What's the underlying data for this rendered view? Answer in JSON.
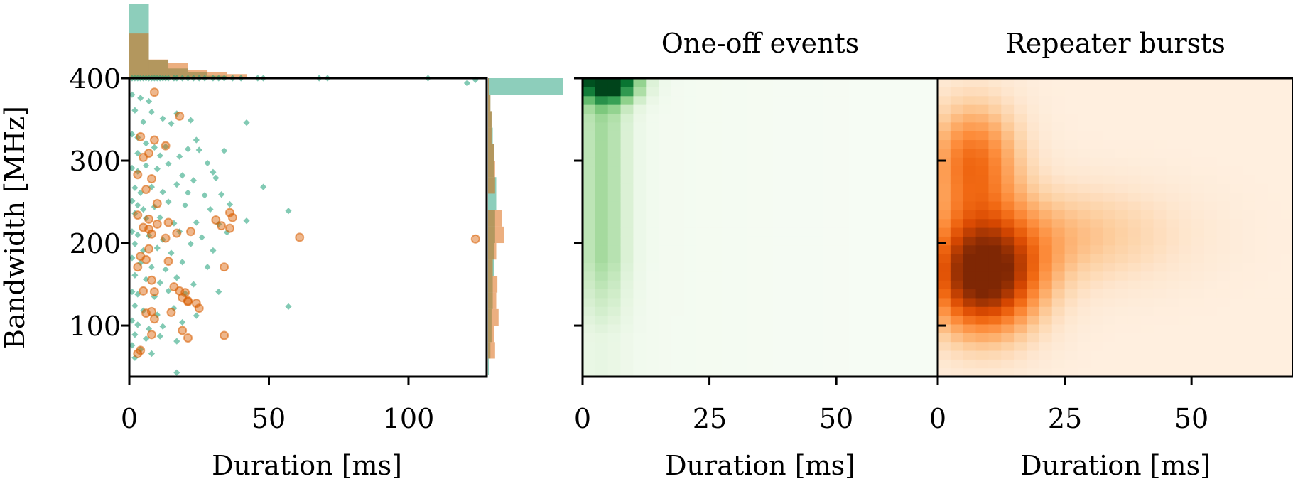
{
  "chart_data": [
    {
      "type": "scatter",
      "title": "",
      "xlabel": "Duration [ms]",
      "ylabel": "Bandwidth [MHz]",
      "xlim": [
        0,
        128
      ],
      "ylim": [
        38,
        400
      ],
      "xticks": [
        "0",
        "50",
        "100"
      ],
      "yticks": [
        "100",
        "200",
        "300",
        "400"
      ],
      "series": [
        {
          "color": "#1b9e77",
          "marker": "diamond",
          "points": [
            [
              1,
              400
            ],
            [
              2,
              400
            ],
            [
              3,
              400
            ],
            [
              4,
              400
            ],
            [
              5,
              400
            ],
            [
              6,
              400
            ],
            [
              7,
              400
            ],
            [
              8,
              400
            ],
            [
              9,
              400
            ],
            [
              10,
              400
            ],
            [
              11,
              400
            ],
            [
              12,
              400
            ],
            [
              13,
              400
            ],
            [
              14,
              400
            ],
            [
              16,
              400
            ],
            [
              17,
              400
            ],
            [
              19,
              400
            ],
            [
              21,
              400
            ],
            [
              23,
              400
            ],
            [
              25,
              400
            ],
            [
              27,
              400
            ],
            [
              30,
              400
            ],
            [
              32,
              400
            ],
            [
              34,
              400
            ],
            [
              37,
              400
            ],
            [
              40,
              400
            ],
            [
              46,
              400
            ],
            [
              48,
              400
            ],
            [
              68,
              400
            ],
            [
              71,
              400
            ],
            [
              107,
              400
            ],
            [
              121,
              394
            ],
            [
              124,
              398
            ],
            [
              1,
              380
            ],
            [
              4,
              376
            ],
            [
              7,
              372
            ],
            [
              2,
              361
            ],
            [
              8,
              359
            ],
            [
              5,
              347
            ],
            [
              12,
              351
            ],
            [
              15,
              345
            ],
            [
              22,
              349
            ],
            [
              17,
              357
            ],
            [
              42,
              346
            ],
            [
              1,
              332
            ],
            [
              3,
              328
            ],
            [
              6,
              321
            ],
            [
              9,
              316
            ],
            [
              13,
              317
            ],
            [
              3,
              309
            ],
            [
              11,
              306
            ],
            [
              18,
              305
            ],
            [
              24,
              325
            ],
            [
              21,
              314
            ],
            [
              25,
              313
            ],
            [
              34,
              312
            ],
            [
              28,
              297
            ],
            [
              1,
              291
            ],
            [
              3,
              287
            ],
            [
              6,
              294
            ],
            [
              10,
              290
            ],
            [
              14,
              296
            ],
            [
              19,
              282
            ],
            [
              23,
              276
            ],
            [
              31,
              279
            ],
            [
              30,
              286
            ],
            [
              2,
              267
            ],
            [
              4,
              261
            ],
            [
              8,
              268
            ],
            [
              12,
              262
            ],
            [
              17,
              271
            ],
            [
              21,
              261
            ],
            [
              27,
              258
            ],
            [
              33,
              259
            ],
            [
              48,
              268
            ],
            [
              1,
              251
            ],
            [
              3,
              246
            ],
            [
              5,
              241
            ],
            [
              9,
              244
            ],
            [
              14,
              250
            ],
            [
              20,
              246
            ],
            [
              29,
              241
            ],
            [
              36,
              247
            ],
            [
              57,
              239
            ],
            [
              2,
              236
            ],
            [
              6,
              230
            ],
            [
              11,
              231
            ],
            [
              16,
              224
            ],
            [
              24,
              225
            ],
            [
              32,
              223
            ],
            [
              42,
              227
            ],
            [
              1,
              214
            ],
            [
              3,
              210
            ],
            [
              7,
              209
            ],
            [
              12,
              204
            ],
            [
              18,
              214
            ],
            [
              26,
              207
            ],
            [
              35,
              213
            ],
            [
              2,
              199
            ],
            [
              5,
              191
            ],
            [
              10,
              194
            ],
            [
              15,
              188
            ],
            [
              22,
              199
            ],
            [
              30,
              191
            ],
            [
              1,
              182
            ],
            [
              4,
              176
            ],
            [
              8,
              171
            ],
            [
              13,
              168
            ],
            [
              19,
              177
            ],
            [
              28,
              171
            ],
            [
              2,
              161
            ],
            [
              6,
              156
            ],
            [
              11,
              152
            ],
            [
              17,
              158
            ],
            [
              23,
              150
            ],
            [
              1,
              141
            ],
            [
              3,
              138
            ],
            [
              9,
              135
            ],
            [
              14,
              142
            ],
            [
              20,
              139
            ],
            [
              32,
              141
            ],
            [
              2,
              124
            ],
            [
              5,
              118
            ],
            [
              10,
              113
            ],
            [
              16,
              121
            ],
            [
              24,
              112
            ],
            [
              57,
              123
            ],
            [
              1,
              106
            ],
            [
              3,
              101
            ],
            [
              7,
              96
            ],
            [
              12,
              99
            ],
            [
              19,
              104
            ],
            [
              2,
              89
            ],
            [
              6,
              84
            ],
            [
              11,
              87
            ],
            [
              17,
              81
            ],
            [
              1,
              76
            ],
            [
              4,
              71
            ],
            [
              8,
              66
            ],
            [
              2,
              61
            ],
            [
              17,
              43
            ]
          ]
        },
        {
          "color": "#d95f02",
          "marker": "circle",
          "points": [
            [
              9,
              383
            ],
            [
              18,
              354
            ],
            [
              4,
              329
            ],
            [
              9,
              325
            ],
            [
              13,
              318
            ],
            [
              5,
              304
            ],
            [
              7,
              309
            ],
            [
              3,
              283
            ],
            [
              8,
              278
            ],
            [
              6,
              265
            ],
            [
              10,
              248
            ],
            [
              3,
              234
            ],
            [
              7,
              229
            ],
            [
              10,
              223
            ],
            [
              14,
              225
            ],
            [
              5,
              219
            ],
            [
              7,
              217
            ],
            [
              8,
              211
            ],
            [
              13,
              206
            ],
            [
              17,
              212
            ],
            [
              22,
              214
            ],
            [
              31,
              228
            ],
            [
              33,
              221
            ],
            [
              36,
              218
            ],
            [
              36,
              237
            ],
            [
              37,
              231
            ],
            [
              61,
              207
            ],
            [
              124,
              205
            ],
            [
              7,
              193
            ],
            [
              4,
              184
            ],
            [
              6,
              180
            ],
            [
              3,
              171
            ],
            [
              14,
              178
            ],
            [
              8,
              155
            ],
            [
              5,
              142
            ],
            [
              9,
              141
            ],
            [
              16,
              147
            ],
            [
              18,
              142
            ],
            [
              20,
              140
            ],
            [
              19,
              134
            ],
            [
              21,
              130
            ],
            [
              24,
              127
            ],
            [
              21,
              129
            ],
            [
              25,
              121
            ],
            [
              34,
              171
            ],
            [
              6,
              115
            ],
            [
              8,
              117
            ],
            [
              15,
              116
            ],
            [
              9,
              108
            ],
            [
              8,
              89
            ],
            [
              19,
              94
            ],
            [
              21,
              85
            ],
            [
              34,
              88
            ],
            [
              4,
              70
            ],
            [
              3,
              66
            ]
          ]
        }
      ],
      "marginal_x": {
        "bin_edges": [
          0,
          7,
          14,
          21,
          28,
          35,
          42,
          49,
          56,
          63,
          70,
          77,
          84,
          91,
          98,
          105,
          112,
          119,
          126
        ],
        "series": [
          {
            "color": "#1b9e77",
            "counts": [
              91,
              22,
              12,
              7,
              3,
              1,
              1,
              0,
              1,
              1,
              0,
              0,
              0,
              0,
              0,
              1,
              0,
              1
            ]
          },
          {
            "color": "#d95f02",
            "counts": [
              55,
              23,
              19,
              10,
              7,
              5,
              0,
              0,
              1,
              0,
              0,
              0,
              0,
              0,
              0,
              0,
              0,
              1
            ]
          }
        ]
      },
      "marginal_y": {
        "bin_edges": [
          40,
          60,
          80,
          100,
          120,
          140,
          160,
          180,
          200,
          220,
          240,
          260,
          280,
          300,
          320,
          340,
          360,
          380,
          400
        ],
        "series": [
          {
            "color": "#1b9e77",
            "counts": [
              1,
              2,
              3,
              3,
              4,
              4,
              5,
              5,
              6,
              6,
              7,
              7,
              5,
              5,
              4,
              3,
              2,
              64
            ]
          },
          {
            "color": "#d95f02",
            "counts": [
              0,
              6,
              5,
              9,
              7,
              8,
              4,
              7,
              14,
              12,
              0,
              6,
              6,
              5,
              3,
              3,
              2,
              1
            ]
          }
        ]
      }
    },
    {
      "type": "heatmap",
      "title": "One-off events",
      "xlabel": "Duration [ms]",
      "xlim": [
        0,
        70
      ],
      "ylim": [
        38,
        400
      ],
      "xticks": [
        "0",
        "25",
        "50"
      ],
      "colormap": "Greens",
      "density_peak": {
        "x": 5,
        "y": 395
      }
    },
    {
      "type": "heatmap",
      "title": "Repeater bursts",
      "xlabel": "Duration [ms]",
      "xlim": [
        0,
        70
      ],
      "ylim": [
        38,
        400
      ],
      "xticks": [
        "0",
        "25",
        "50"
      ],
      "colormap": "Oranges",
      "density_peak": {
        "x": 9,
        "y": 160
      }
    }
  ]
}
